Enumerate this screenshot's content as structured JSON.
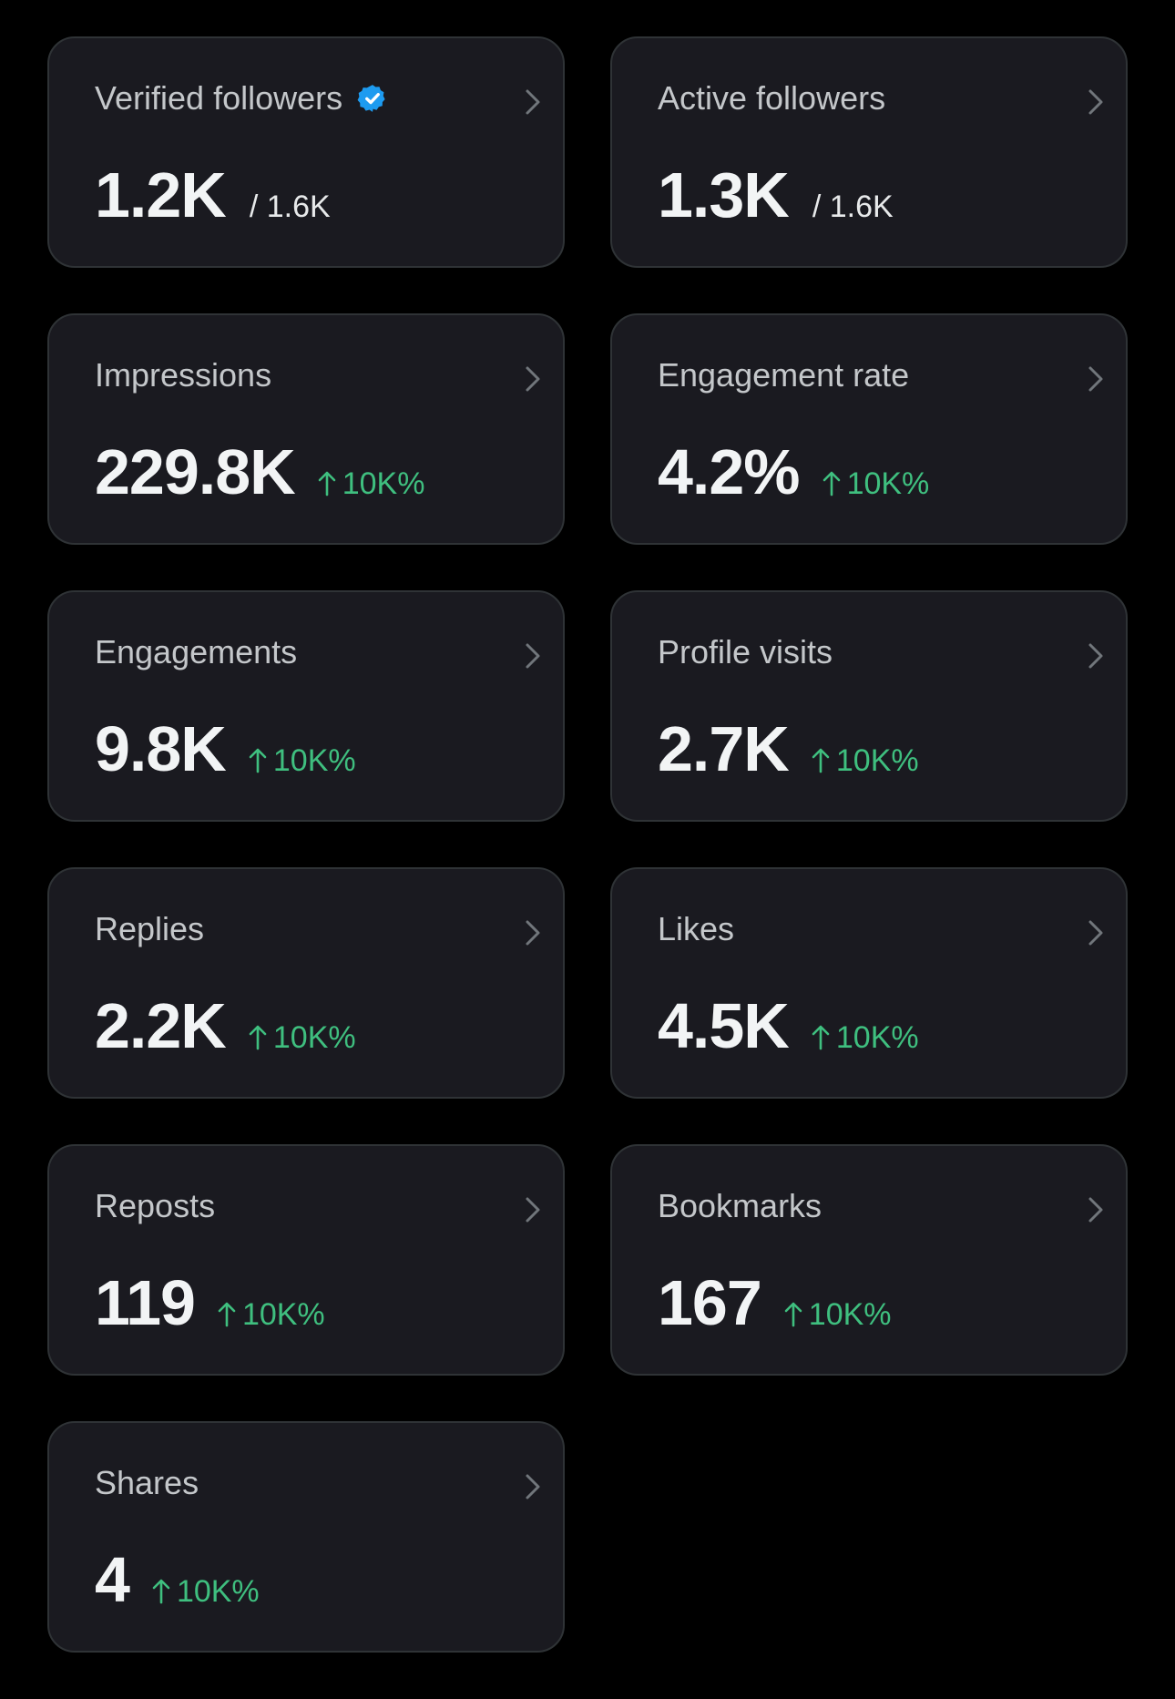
{
  "colors": {
    "background": "#000000",
    "card": "#1a1a20",
    "card_border": "#2f3336",
    "verified_badge": "#1d9bf0",
    "positive_change": "#3fbf7f"
  },
  "icons": {
    "verified": "verified-badge-icon",
    "chevron": "chevron-right-icon",
    "arrow": "arrow-up-icon"
  },
  "cards": {
    "verified_followers": {
      "title": "Verified followers",
      "value": "1.2K",
      "total": "/ 1.6K"
    },
    "active_followers": {
      "title": "Active followers",
      "value": "1.3K",
      "total": "/ 1.6K"
    },
    "impressions": {
      "title": "Impressions",
      "value": "229.8K",
      "change": "10K%"
    },
    "engagement_rate": {
      "title": "Engagement rate",
      "value": "4.2%",
      "change": "10K%"
    },
    "engagements": {
      "title": "Engagements",
      "value": "9.8K",
      "change": "10K%"
    },
    "profile_visits": {
      "title": "Profile visits",
      "value": "2.7K",
      "change": "10K%"
    },
    "replies": {
      "title": "Replies",
      "value": "2.2K",
      "change": "10K%"
    },
    "likes": {
      "title": "Likes",
      "value": "4.5K",
      "change": "10K%"
    },
    "reposts": {
      "title": "Reposts",
      "value": "119",
      "change": "10K%"
    },
    "bookmarks": {
      "title": "Bookmarks",
      "value": "167",
      "change": "10K%"
    },
    "shares": {
      "title": "Shares",
      "value": "4",
      "change": "10K%"
    }
  }
}
